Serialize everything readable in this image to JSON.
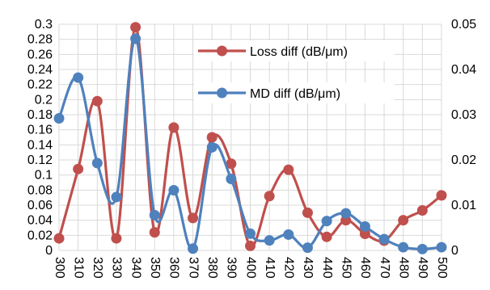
{
  "chart_data": {
    "type": "line",
    "title": "",
    "xlabel": "",
    "ylabel": "",
    "x": [
      300,
      310,
      320,
      330,
      340,
      350,
      360,
      370,
      380,
      390,
      400,
      410,
      420,
      430,
      440,
      450,
      460,
      470,
      480,
      490,
      500
    ],
    "x_tick_labels": [
      "300",
      "310",
      "320",
      "330",
      "340",
      "350",
      "360",
      "370",
      "380",
      "390",
      "400",
      "410",
      "420",
      "430",
      "440",
      "450",
      "460",
      "470",
      "480",
      "490",
      "500"
    ],
    "ylim_left": [
      0,
      0.3
    ],
    "y_left_ticks": [
      "0",
      "0.02",
      "0.04",
      "0.06",
      "0.08",
      "0.1",
      "0.12",
      "0.14",
      "0.16",
      "0.18",
      "0.2",
      "0.22",
      "0.24",
      "0.26",
      "0.28",
      "0.3"
    ],
    "ylim_right": [
      0,
      0.05
    ],
    "y_right_ticks": [
      "0",
      "0.01",
      "0.02",
      "0.03",
      "0.04",
      "0.05"
    ],
    "grid": true,
    "legend_position": "top-right",
    "series": [
      {
        "name": "Loss diff (dB/μm)",
        "axis": "left",
        "color": "#c0504d",
        "values": [
          0.016,
          0.108,
          0.198,
          0.016,
          0.296,
          0.024,
          0.163,
          0.043,
          0.15,
          0.115,
          0.006,
          0.072,
          0.107,
          0.05,
          0.018,
          0.04,
          0.022,
          0.013,
          0.04,
          0.053,
          0.073
        ]
      },
      {
        "name": "MD diff (dB/μm)",
        "axis": "right",
        "color": "#4f81bd",
        "values": [
          0.0292,
          0.0382,
          0.0193,
          0.0118,
          0.0468,
          0.0078,
          0.0133,
          0.0004,
          0.0228,
          0.0158,
          0.0037,
          0.0022,
          0.0035,
          0.0006,
          0.0065,
          0.0082,
          0.0053,
          0.0025,
          0.0007,
          0.0003,
          0.0007
        ]
      }
    ]
  }
}
